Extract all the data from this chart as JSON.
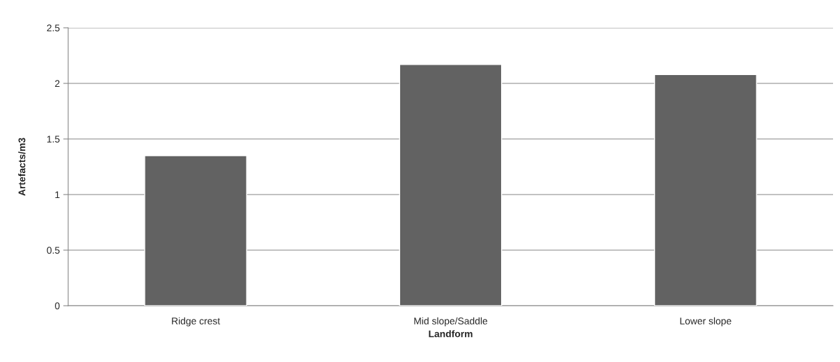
{
  "chart_data": {
    "type": "bar",
    "xlabel": "Landform",
    "ylabel": "Artefacts/m3",
    "categories": [
      "Ridge crest",
      "Mid slope/Saddle",
      "Lower slope"
    ],
    "values": [
      1.35,
      2.17,
      2.08
    ],
    "color": "#626262",
    "ylim": [
      0,
      2.5
    ],
    "yticks": [
      0,
      0.5,
      1,
      1.5,
      2,
      2.5
    ],
    "grid": "y"
  }
}
